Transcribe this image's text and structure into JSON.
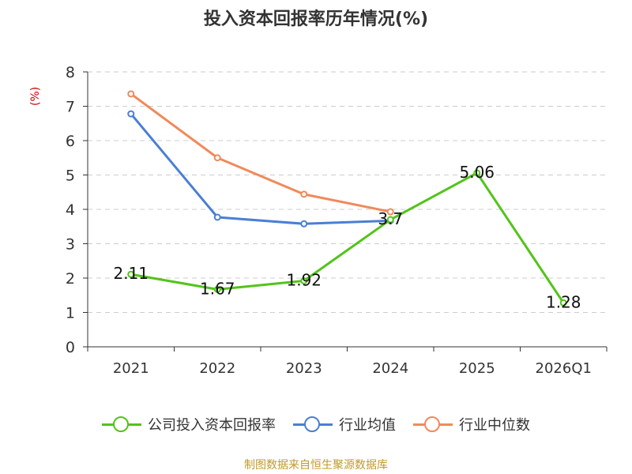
{
  "title": "投入资本回报率历年情况(%)",
  "source": "制图数据来自恒生聚源数据库",
  "chart_data": {
    "type": "line",
    "title": "投入资本回报率历年情况(%)",
    "ylabel": "(%)",
    "xlabel": "",
    "ylim": [
      0,
      8
    ],
    "yticks": [
      "0",
      "1",
      "2",
      "3",
      "4",
      "5",
      "6",
      "7",
      "8"
    ],
    "categories": [
      "2021",
      "2022",
      "2023",
      "2024",
      "2025",
      "2026Q1"
    ],
    "grid": true,
    "legend_position": "bottom",
    "series": [
      {
        "name": "公司投入资本回报率",
        "color": "#52c41a",
        "values": [
          2.11,
          1.67,
          1.92,
          3.7,
          5.06,
          1.28
        ],
        "data_labels": [
          "2.11",
          "1.67",
          "1.92",
          "3.7",
          "5.06",
          "1.28"
        ]
      },
      {
        "name": "行业均值",
        "color": "#4a7fd4",
        "values": [
          6.78,
          3.77,
          3.58,
          3.67,
          null,
          null
        ]
      },
      {
        "name": "行业中位数",
        "color": "#f08a5a",
        "values": [
          7.36,
          5.5,
          4.44,
          3.93,
          null,
          null
        ]
      }
    ]
  }
}
